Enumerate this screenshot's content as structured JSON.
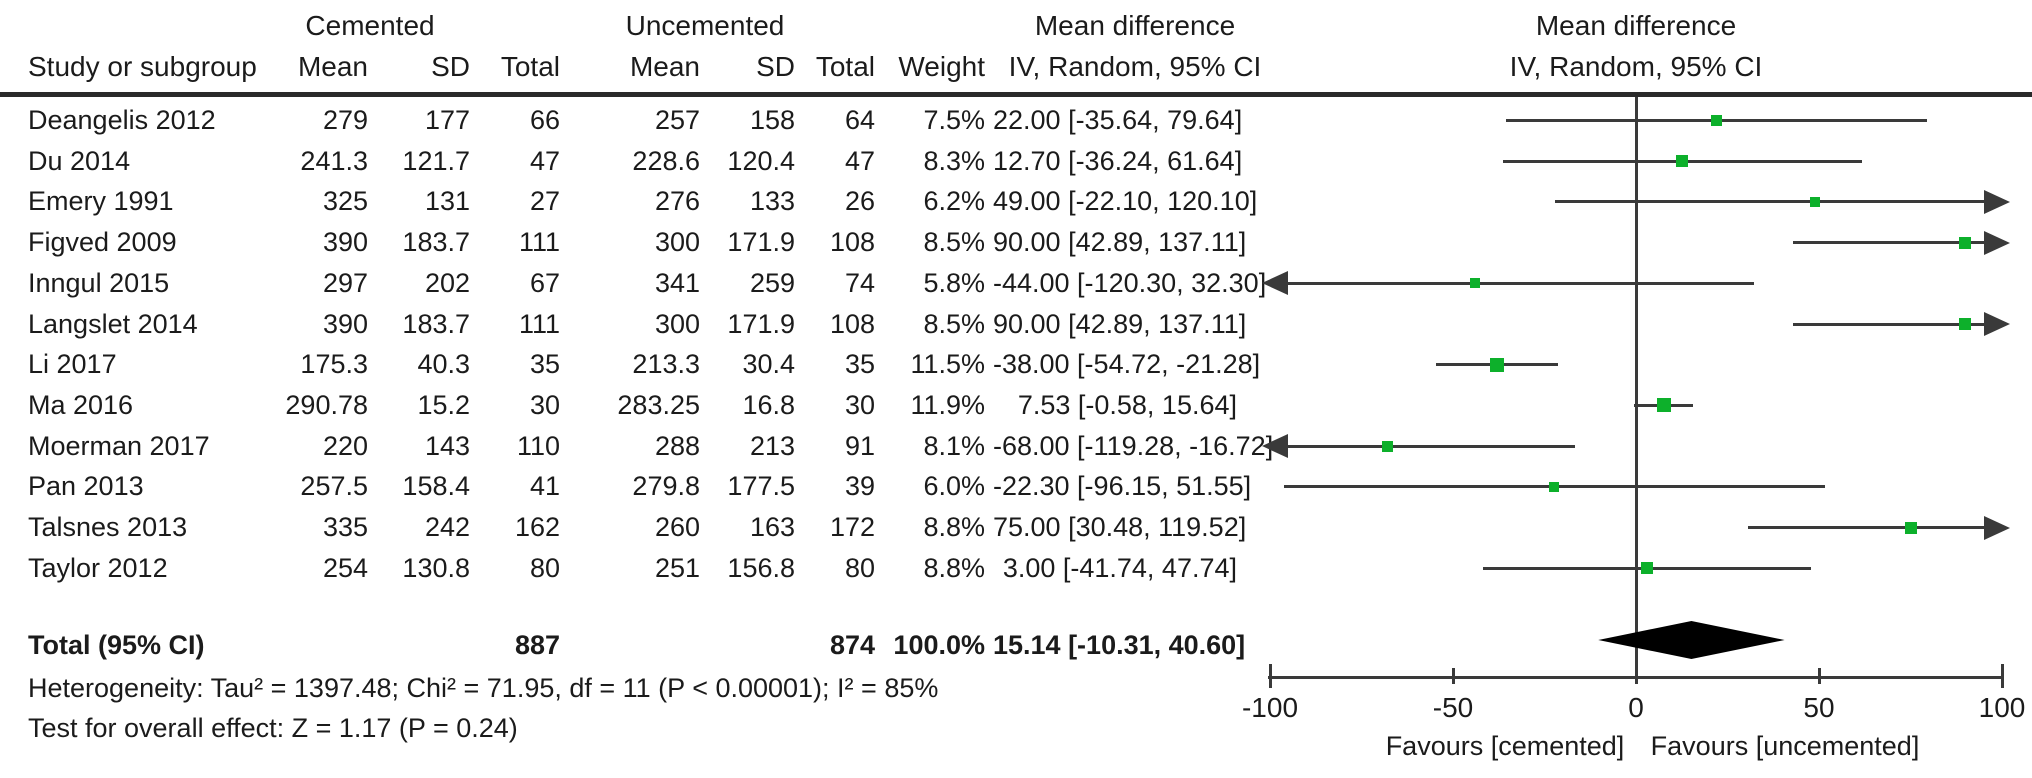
{
  "table": {
    "group1_label": "Cemented",
    "group2_label": "Uncemented",
    "col_study": "Study or subgroup",
    "col_mean": "Mean",
    "col_sd": "SD",
    "col_total": "Total",
    "col_weight": "Weight",
    "md_label": "Mean difference",
    "ci_label": "IV, Random, 95% CI"
  },
  "plot": {
    "md_label": "Mean difference",
    "ci_label": "IV, Random, 95% CI",
    "favours_left": "Favours [cemented]",
    "favours_right": "Favours [uncemented]",
    "marker_color": "#0db02b",
    "line_color": "#3a3a3a"
  },
  "studies": [
    {
      "name": "Deangelis 2012",
      "c_mean": "279",
      "c_sd": "177",
      "c_total": "66",
      "u_mean": "257",
      "u_sd": "158",
      "u_total": "64",
      "weight": "7.5%",
      "ci_text": "22.00 [-35.64, 79.64]"
    },
    {
      "name": "Du 2014",
      "c_mean": "241.3",
      "c_sd": "121.7",
      "c_total": "47",
      "u_mean": "228.6",
      "u_sd": "120.4",
      "u_total": "47",
      "weight": "8.3%",
      "ci_text": "12.70 [-36.24, 61.64]"
    },
    {
      "name": "Emery 1991",
      "c_mean": "325",
      "c_sd": "131",
      "c_total": "27",
      "u_mean": "276",
      "u_sd": "133",
      "u_total": "26",
      "weight": "6.2%",
      "ci_text": "49.00 [-22.10, 120.10]"
    },
    {
      "name": "Figved 2009",
      "c_mean": "390",
      "c_sd": "183.7",
      "c_total": "111",
      "u_mean": "300",
      "u_sd": "171.9",
      "u_total": "108",
      "weight": "8.5%",
      "ci_text": "90.00 [42.89, 137.11]"
    },
    {
      "name": "Inngul 2015",
      "c_mean": "297",
      "c_sd": "202",
      "c_total": "67",
      "u_mean": "341",
      "u_sd": "259",
      "u_total": "74",
      "weight": "5.8%",
      "ci_text": "-44.00 [-120.30, 32.30]"
    },
    {
      "name": "Langslet 2014",
      "c_mean": "390",
      "c_sd": "183.7",
      "c_total": "111",
      "u_mean": "300",
      "u_sd": "171.9",
      "u_total": "108",
      "weight": "8.5%",
      "ci_text": "90.00 [42.89, 137.11]"
    },
    {
      "name": "Li 2017",
      "c_mean": "175.3",
      "c_sd": "40.3",
      "c_total": "35",
      "u_mean": "213.3",
      "u_sd": "30.4",
      "u_total": "35",
      "weight": "11.5%",
      "ci_text": "-38.00 [-54.72, -21.28]"
    },
    {
      "name": "Ma 2016",
      "c_mean": "290.78",
      "c_sd": "15.2",
      "c_total": "30",
      "u_mean": "283.25",
      "u_sd": "16.8",
      "u_total": "30",
      "weight": "11.9%",
      "ci_text": "7.53 [-0.58, 15.64]"
    },
    {
      "name": "Moerman 2017",
      "c_mean": "220",
      "c_sd": "143",
      "c_total": "110",
      "u_mean": "288",
      "u_sd": "213",
      "u_total": "91",
      "weight": "8.1%",
      "ci_text": "-68.00 [-119.28, -16.72]"
    },
    {
      "name": "Pan 2013",
      "c_mean": "257.5",
      "c_sd": "158.4",
      "c_total": "41",
      "u_mean": "279.8",
      "u_sd": "177.5",
      "u_total": "39",
      "weight": "6.0%",
      "ci_text": "-22.30 [-96.15, 51.55]"
    },
    {
      "name": "Talsnes 2013",
      "c_mean": "335",
      "c_sd": "242",
      "c_total": "162",
      "u_mean": "260",
      "u_sd": "163",
      "u_total": "172",
      "weight": "8.8%",
      "ci_text": "75.00 [30.48, 119.52]"
    },
    {
      "name": "Taylor 2012",
      "c_mean": "254",
      "c_sd": "130.8",
      "c_total": "80",
      "u_mean": "251",
      "u_sd": "156.8",
      "u_total": "80",
      "weight": "8.8%",
      "ci_text": "3.00 [-41.74, 47.74]"
    }
  ],
  "total_row": {
    "label": "Total (95% CI)",
    "c_total": "887",
    "u_total": "874",
    "weight": "100.0%",
    "ci_text": "15.14 [-10.31, 40.60]"
  },
  "footer": {
    "heterogeneity": "Heterogeneity: Tau² = 1397.48; Chi² = 71.95, df = 11 (P < 0.00001); I² = 85%",
    "overall_effect": "Test for overall effect: Z = 1.17 (P = 0.24)"
  },
  "chart_data": {
    "type": "scatter",
    "title": "Forest plot: Mean difference, IV, Random, 95% CI (Cemented vs Uncemented)",
    "xlim": [
      -100,
      100
    ],
    "xticks": [
      -100,
      -50,
      0,
      50,
      100
    ],
    "xlabel_left": "Favours [cemented]",
    "xlabel_right": "Favours [uncemented]",
    "grid": false,
    "studies": [
      {
        "study": "Deangelis 2012",
        "md": 22.0,
        "ci_low": -35.64,
        "ci_high": 79.64,
        "weight_pct": 7.5
      },
      {
        "study": "Du 2014",
        "md": 12.7,
        "ci_low": -36.24,
        "ci_high": 61.64,
        "weight_pct": 8.3
      },
      {
        "study": "Emery 1991",
        "md": 49.0,
        "ci_low": -22.1,
        "ci_high": 120.1,
        "weight_pct": 6.2
      },
      {
        "study": "Figved 2009",
        "md": 90.0,
        "ci_low": 42.89,
        "ci_high": 137.11,
        "weight_pct": 8.5
      },
      {
        "study": "Inngul 2015",
        "md": -44.0,
        "ci_low": -120.3,
        "ci_high": 32.3,
        "weight_pct": 5.8
      },
      {
        "study": "Langslet 2014",
        "md": 90.0,
        "ci_low": 42.89,
        "ci_high": 137.11,
        "weight_pct": 8.5
      },
      {
        "study": "Li 2017",
        "md": -38.0,
        "ci_low": -54.72,
        "ci_high": -21.28,
        "weight_pct": 11.5
      },
      {
        "study": "Ma 2016",
        "md": 7.53,
        "ci_low": -0.58,
        "ci_high": 15.64,
        "weight_pct": 11.9
      },
      {
        "study": "Moerman 2017",
        "md": -68.0,
        "ci_low": -119.28,
        "ci_high": -16.72,
        "weight_pct": 8.1
      },
      {
        "study": "Pan 2013",
        "md": -22.3,
        "ci_low": -96.15,
        "ci_high": 51.55,
        "weight_pct": 6.0
      },
      {
        "study": "Talsnes 2013",
        "md": 75.0,
        "ci_low": 30.48,
        "ci_high": 119.52,
        "weight_pct": 8.8
      },
      {
        "study": "Taylor 2012",
        "md": 3.0,
        "ci_low": -41.74,
        "ci_high": 47.74,
        "weight_pct": 8.8
      }
    ],
    "total": {
      "study": "Total (95% CI)",
      "md": 15.14,
      "ci_low": -10.31,
      "ci_high": 40.6,
      "weight_pct": 100.0
    }
  }
}
